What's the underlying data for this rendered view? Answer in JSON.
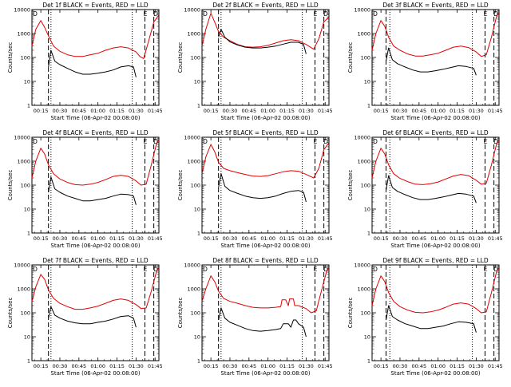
{
  "colors": {
    "events": "#000000",
    "lld": "#e00000",
    "axes": "#000000",
    "background": "#ffffff"
  },
  "shared": {
    "ylabel": "Counts/sec",
    "xlabel": "Start Time (06-Apr-02 00:08:00)",
    "xticks": [
      "00:15",
      "00:30",
      "00:45",
      "01:00",
      "01:15",
      "01:30",
      "01:45"
    ],
    "yticks": [
      "1",
      "10",
      "100",
      "1000",
      "10000"
    ],
    "flag_labels": [
      "D",
      "E",
      "D"
    ]
  },
  "chart_data": [
    {
      "type": "line",
      "title": "Det 1f BLACK = Events, RED = LLD",
      "xlim": [
        "00:08",
        "01:48"
      ],
      "ylim": [
        1,
        10000
      ],
      "ylog": true,
      "markers": {
        "dashed": [
          "00:21",
          "01:37",
          "01:44"
        ],
        "dotted": [
          "00:23",
          "01:27"
        ]
      },
      "series": [
        {
          "name": "RED = LLD",
          "color": "#e00000",
          "x": [
            "00:08",
            "00:11",
            "00:15",
            "00:18",
            "00:21",
            "00:25",
            "00:30",
            "00:36",
            "00:42",
            "00:48",
            "00:54",
            "01:00",
            "01:06",
            "01:12",
            "01:18",
            "01:24",
            "01:30",
            "01:33",
            "01:36",
            "01:40",
            "01:44",
            "01:48"
          ],
          "y": [
            300,
            1500,
            3500,
            1800,
            800,
            300,
            180,
            130,
            110,
            110,
            130,
            150,
            200,
            250,
            280,
            250,
            170,
            110,
            90,
            500,
            3000,
            6000
          ]
        },
        {
          "name": "BLACK = Events",
          "color": "#000000",
          "x": [
            "00:21",
            "00:23",
            "00:26",
            "00:30",
            "00:36",
            "00:42",
            "00:48",
            "00:54",
            "01:00",
            "01:06",
            "01:12",
            "01:18",
            "01:24",
            "01:28",
            "01:30"
          ],
          "y": [
            40,
            200,
            70,
            50,
            35,
            25,
            20,
            20,
            22,
            25,
            30,
            40,
            45,
            40,
            15
          ]
        }
      ]
    },
    {
      "type": "line",
      "title": "Det 2f BLACK = Events, RED = LLD",
      "xlim": [
        "00:08",
        "01:48"
      ],
      "ylim": [
        1,
        10000
      ],
      "ylog": true,
      "markers": {
        "dashed": [
          "00:21",
          "01:37",
          "01:44"
        ],
        "dotted": [
          "00:23",
          "01:27"
        ]
      },
      "series": [
        {
          "name": "RED = LLD",
          "color": "#e00000",
          "x": [
            "00:08",
            "00:11",
            "00:15",
            "00:18",
            "00:21",
            "00:25",
            "00:30",
            "00:36",
            "00:42",
            "00:48",
            "00:54",
            "01:00",
            "01:06",
            "01:12",
            "01:18",
            "01:24",
            "01:30",
            "01:36",
            "01:40",
            "01:44",
            "01:48"
          ],
          "y": [
            300,
            1500,
            7000,
            3000,
            1200,
            700,
            500,
            350,
            280,
            270,
            280,
            320,
            400,
            500,
            550,
            500,
            350,
            220,
            600,
            3000,
            5000
          ]
        },
        {
          "name": "BLACK = Events",
          "color": "#000000",
          "x": [
            "00:21",
            "00:23",
            "00:26",
            "00:30",
            "00:36",
            "00:42",
            "00:48",
            "00:54",
            "01:00",
            "01:06",
            "01:12",
            "01:18",
            "01:24",
            "01:28",
            "01:30"
          ],
          "y": [
            700,
            1500,
            700,
            450,
            330,
            270,
            250,
            250,
            270,
            300,
            360,
            430,
            430,
            350,
            140
          ]
        }
      ]
    },
    {
      "type": "line",
      "title": "Det 3f BLACK = Events, RED = LLD",
      "xlim": [
        "00:08",
        "01:48"
      ],
      "ylim": [
        1,
        10000
      ],
      "ylog": true,
      "markers": {
        "dashed": [
          "00:19",
          "01:37",
          "01:44"
        ],
        "dotted": [
          "00:22",
          "01:27"
        ]
      },
      "series": [
        {
          "name": "RED = LLD",
          "color": "#e00000",
          "x": [
            "00:08",
            "00:11",
            "00:15",
            "00:18",
            "00:21",
            "00:25",
            "00:30",
            "00:36",
            "00:42",
            "00:48",
            "00:54",
            "01:00",
            "01:06",
            "01:12",
            "01:18",
            "01:24",
            "01:30",
            "01:34",
            "01:38",
            "01:42",
            "01:46",
            "01:48"
          ],
          "y": [
            200,
            1000,
            3500,
            2000,
            700,
            300,
            200,
            140,
            115,
            115,
            130,
            150,
            200,
            270,
            300,
            260,
            170,
            110,
            130,
            700,
            5000,
            8000
          ]
        },
        {
          "name": "BLACK = Events",
          "color": "#000000",
          "x": [
            "00:19",
            "00:21",
            "00:24",
            "00:28",
            "00:34",
            "00:40",
            "00:46",
            "00:52",
            "00:58",
            "01:04",
            "01:10",
            "01:16",
            "01:22",
            "01:28",
            "01:30"
          ],
          "y": [
            70,
            250,
            80,
            55,
            40,
            30,
            25,
            25,
            28,
            32,
            38,
            45,
            42,
            35,
            18
          ]
        }
      ]
    },
    {
      "type": "line",
      "title": "Det 4f BLACK = Events, RED = LLD",
      "xlim": [
        "00:08",
        "01:48"
      ],
      "ylim": [
        1,
        10000
      ],
      "ylog": true,
      "markers": {
        "dashed": [
          "00:21",
          "01:37",
          "01:44"
        ],
        "dotted": [
          "00:23",
          "01:27"
        ]
      },
      "series": [
        {
          "name": "RED = LLD",
          "color": "#e00000",
          "x": [
            "00:08",
            "00:11",
            "00:15",
            "00:18",
            "00:21",
            "00:25",
            "00:30",
            "00:36",
            "00:42",
            "00:48",
            "00:54",
            "01:00",
            "01:06",
            "01:12",
            "01:18",
            "01:24",
            "01:30",
            "01:34",
            "01:38",
            "01:42",
            "01:46",
            "01:48"
          ],
          "y": [
            200,
            1000,
            3500,
            2000,
            700,
            300,
            180,
            130,
            105,
            100,
            110,
            130,
            170,
            230,
            260,
            230,
            150,
            100,
            110,
            700,
            5000,
            8000
          ]
        },
        {
          "name": "BLACK = Events",
          "color": "#000000",
          "x": [
            "00:21",
            "00:23",
            "00:26",
            "00:30",
            "00:36",
            "00:42",
            "00:48",
            "00:54",
            "01:00",
            "01:06",
            "01:12",
            "01:18",
            "01:24",
            "01:28",
            "01:30"
          ],
          "y": [
            50,
            220,
            70,
            50,
            35,
            28,
            22,
            22,
            25,
            28,
            35,
            42,
            40,
            35,
            15
          ]
        }
      ]
    },
    {
      "type": "line",
      "title": "Det 5f BLACK = Events, RED = LLD",
      "xlim": [
        "00:08",
        "01:48"
      ],
      "ylim": [
        1,
        10000
      ],
      "ylog": true,
      "markers": {
        "dashed": [
          "00:21",
          "01:37",
          "01:44"
        ],
        "dotted": [
          "00:23",
          "01:27"
        ]
      },
      "series": [
        {
          "name": "RED = LLD",
          "color": "#e00000",
          "x": [
            "00:08",
            "00:11",
            "00:15",
            "00:18",
            "00:21",
            "00:25",
            "00:30",
            "00:36",
            "00:42",
            "00:48",
            "00:54",
            "01:00",
            "01:06",
            "01:12",
            "01:18",
            "01:24",
            "01:30",
            "01:36",
            "01:40",
            "01:44",
            "01:48"
          ],
          "y": [
            300,
            1500,
            5000,
            2500,
            900,
            500,
            400,
            330,
            280,
            240,
            230,
            250,
            300,
            360,
            400,
            380,
            280,
            200,
            500,
            3000,
            6000
          ]
        },
        {
          "name": "BLACK = Events",
          "color": "#000000",
          "x": [
            "00:21",
            "00:23",
            "00:26",
            "00:30",
            "00:36",
            "00:42",
            "00:48",
            "00:54",
            "01:00",
            "01:06",
            "01:12",
            "01:18",
            "01:24",
            "01:28",
            "01:30"
          ],
          "y": [
            80,
            300,
            90,
            60,
            45,
            35,
            30,
            28,
            30,
            35,
            45,
            55,
            60,
            50,
            20
          ]
        }
      ]
    },
    {
      "type": "line",
      "title": "Det 6f BLACK = Events, RED = LLD",
      "xlim": [
        "00:08",
        "01:48"
      ],
      "ylim": [
        1,
        10000
      ],
      "ylog": true,
      "markers": {
        "dashed": [
          "00:19",
          "01:37",
          "01:44"
        ],
        "dotted": [
          "00:22",
          "01:27"
        ]
      },
      "series": [
        {
          "name": "RED = LLD",
          "color": "#e00000",
          "x": [
            "00:08",
            "00:11",
            "00:15",
            "00:18",
            "00:21",
            "00:25",
            "00:30",
            "00:36",
            "00:42",
            "00:48",
            "00:54",
            "01:00",
            "01:06",
            "01:12",
            "01:18",
            "01:24",
            "01:30",
            "01:34",
            "01:38",
            "01:42",
            "01:46",
            "01:48"
          ],
          "y": [
            200,
            1000,
            3500,
            2000,
            700,
            300,
            190,
            140,
            110,
            105,
            115,
            135,
            180,
            240,
            280,
            250,
            160,
            110,
            120,
            700,
            5000,
            8000
          ]
        },
        {
          "name": "BLACK = Events",
          "color": "#000000",
          "x": [
            "00:19",
            "00:21",
            "00:24",
            "00:28",
            "00:34",
            "00:40",
            "00:46",
            "00:52",
            "00:58",
            "01:04",
            "01:10",
            "01:16",
            "01:22",
            "01:28",
            "01:30"
          ],
          "y": [
            60,
            250,
            80,
            55,
            40,
            30,
            25,
            25,
            28,
            32,
            38,
            45,
            42,
            35,
            18
          ]
        }
      ]
    },
    {
      "type": "line",
      "title": "Det 7f BLACK = Events, RED = LLD",
      "xlim": [
        "00:08",
        "01:48"
      ],
      "ylim": [
        1,
        10000
      ],
      "ylog": true,
      "markers": {
        "dashed": [
          "00:21",
          "01:37",
          "01:44"
        ],
        "dotted": [
          "00:23",
          "01:27"
        ]
      },
      "series": [
        {
          "name": "RED = LLD",
          "color": "#e00000",
          "x": [
            "00:08",
            "00:11",
            "00:15",
            "00:18",
            "00:21",
            "00:25",
            "00:30",
            "00:36",
            "00:42",
            "00:48",
            "00:54",
            "01:00",
            "01:06",
            "01:12",
            "01:18",
            "01:24",
            "01:30",
            "01:34",
            "01:38",
            "01:42",
            "01:46",
            "01:48"
          ],
          "y": [
            300,
            1200,
            4000,
            2500,
            900,
            400,
            250,
            180,
            140,
            140,
            160,
            190,
            250,
            330,
            380,
            330,
            220,
            150,
            160,
            800,
            5000,
            8000
          ]
        },
        {
          "name": "BLACK = Events",
          "color": "#000000",
          "x": [
            "00:21",
            "00:23",
            "00:26",
            "00:30",
            "00:36",
            "00:42",
            "00:48",
            "00:54",
            "01:00",
            "01:06",
            "01:12",
            "01:18",
            "01:24",
            "01:28",
            "01:30"
          ],
          "y": [
            60,
            180,
            80,
            60,
            45,
            38,
            35,
            35,
            40,
            45,
            55,
            70,
            75,
            60,
            25
          ]
        }
      ]
    },
    {
      "type": "line",
      "title": "Det 8f BLACK = Events, RED = LLD",
      "xlim": [
        "00:08",
        "01:48"
      ],
      "ylim": [
        1,
        10000
      ],
      "ylog": true,
      "markers": {
        "dashed": [
          "00:21",
          "01:37",
          "01:44"
        ],
        "dotted": [
          "00:23",
          "01:27"
        ]
      },
      "series": [
        {
          "name": "RED = LLD",
          "color": "#e00000",
          "x": [
            "00:08",
            "00:11",
            "00:15",
            "00:18",
            "00:21",
            "00:25",
            "00:30",
            "00:36",
            "00:42",
            "00:48",
            "00:54",
            "01:00",
            "01:06",
            "01:10",
            "01:11",
            "01:14",
            "01:16",
            "01:17",
            "01:20",
            "01:21",
            "01:24",
            "01:30",
            "01:34",
            "01:38",
            "01:42",
            "01:46",
            "01:48"
          ],
          "y": [
            300,
            1000,
            3500,
            2000,
            800,
            400,
            300,
            250,
            200,
            170,
            160,
            160,
            170,
            180,
            350,
            350,
            200,
            380,
            380,
            200,
            200,
            150,
            100,
            120,
            800,
            5000,
            8000
          ]
        },
        {
          "name": "BLACK = Events",
          "color": "#000000",
          "x": [
            "00:21",
            "00:23",
            "00:26",
            "00:30",
            "00:36",
            "00:42",
            "00:48",
            "00:54",
            "01:00",
            "01:06",
            "01:10",
            "01:12",
            "01:16",
            "01:18",
            "01:20",
            "01:22",
            "01:24",
            "01:28",
            "01:30"
          ],
          "y": [
            50,
            160,
            60,
            40,
            30,
            22,
            18,
            17,
            18,
            20,
            22,
            35,
            35,
            25,
            50,
            50,
            35,
            25,
            10
          ]
        }
      ]
    },
    {
      "type": "line",
      "title": "Det 9f BLACK = Events, RED = LLD",
      "xlim": [
        "00:08",
        "01:48"
      ],
      "ylim": [
        1,
        10000
      ],
      "ylog": true,
      "markers": {
        "dashed": [
          "00:19",
          "01:37",
          "01:44"
        ],
        "dotted": [
          "00:22",
          "01:27"
        ]
      },
      "series": [
        {
          "name": "RED = LLD",
          "color": "#e00000",
          "x": [
            "00:08",
            "00:11",
            "00:15",
            "00:18",
            "00:21",
            "00:25",
            "00:30",
            "00:36",
            "00:42",
            "00:48",
            "00:54",
            "01:00",
            "01:06",
            "01:12",
            "01:18",
            "01:24",
            "01:30",
            "01:34",
            "01:38",
            "01:42",
            "01:46",
            "01:48"
          ],
          "y": [
            200,
            1000,
            3500,
            2000,
            700,
            300,
            180,
            130,
            105,
            100,
            110,
            130,
            170,
            230,
            260,
            230,
            150,
            100,
            110,
            700,
            5000,
            8000
          ]
        },
        {
          "name": "BLACK = Events",
          "color": "#000000",
          "x": [
            "00:19",
            "00:21",
            "00:24",
            "00:28",
            "00:34",
            "00:40",
            "00:46",
            "00:52",
            "00:58",
            "01:04",
            "01:10",
            "01:16",
            "01:22",
            "01:28",
            "01:30"
          ],
          "y": [
            50,
            200,
            70,
            50,
            35,
            28,
            22,
            22,
            25,
            28,
            35,
            42,
            40,
            35,
            15
          ]
        }
      ]
    }
  ]
}
